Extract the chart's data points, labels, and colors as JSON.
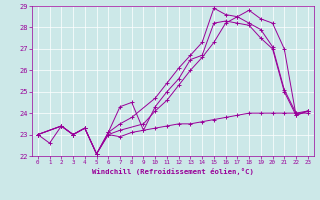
{
  "xlabel": "Windchill (Refroidissement éolien,°C)",
  "background_color": "#cce8e8",
  "line_color": "#990099",
  "grid_color": "#aacccc",
  "xlim": [
    -0.5,
    23.5
  ],
  "ylim": [
    22.0,
    29.0
  ],
  "xticks": [
    0,
    1,
    2,
    3,
    4,
    5,
    6,
    7,
    8,
    9,
    10,
    11,
    12,
    13,
    14,
    15,
    16,
    17,
    18,
    19,
    20,
    21,
    22,
    23
  ],
  "yticks": [
    22,
    23,
    24,
    25,
    26,
    27,
    28,
    29
  ],
  "series": [
    {
      "x": [
        0,
        1,
        2,
        3,
        4,
        5,
        6,
        7,
        8,
        9,
        10,
        11,
        12,
        13,
        14,
        15,
        16,
        17,
        18,
        19,
        20,
        21,
        22,
        23
      ],
      "y": [
        23.0,
        22.6,
        23.4,
        23.0,
        23.3,
        22.1,
        23.0,
        22.9,
        23.1,
        23.2,
        23.3,
        23.4,
        23.5,
        23.5,
        23.6,
        23.7,
        23.8,
        23.9,
        24.0,
        24.0,
        24.0,
        24.0,
        24.0,
        24.0
      ]
    },
    {
      "x": [
        0,
        2,
        3,
        4,
        5,
        6,
        7,
        8,
        9,
        10,
        11,
        12,
        13,
        14,
        15,
        16,
        17,
        18,
        19,
        20,
        21,
        22,
        23
      ],
      "y": [
        23.0,
        23.4,
        23.0,
        23.3,
        22.1,
        23.1,
        24.3,
        24.5,
        23.2,
        24.3,
        25.0,
        25.6,
        26.5,
        26.7,
        28.2,
        28.3,
        28.2,
        28.1,
        27.5,
        27.0,
        25.0,
        23.9,
        24.1
      ]
    },
    {
      "x": [
        0,
        2,
        3,
        4,
        5,
        6,
        7,
        9,
        10,
        11,
        12,
        13,
        14,
        15,
        16,
        17,
        18,
        19,
        20,
        21,
        22,
        23
      ],
      "y": [
        23.0,
        23.4,
        23.0,
        23.3,
        22.1,
        23.0,
        23.2,
        23.5,
        24.1,
        24.6,
        25.3,
        26.0,
        26.6,
        27.3,
        28.2,
        28.5,
        28.8,
        28.4,
        28.2,
        27.0,
        23.9,
        24.1
      ]
    },
    {
      "x": [
        0,
        2,
        3,
        4,
        5,
        6,
        7,
        8,
        10,
        11,
        12,
        13,
        14,
        15,
        16,
        17,
        18,
        19,
        20,
        21,
        22,
        23
      ],
      "y": [
        23.0,
        23.4,
        23.0,
        23.3,
        22.1,
        23.1,
        23.5,
        23.8,
        24.7,
        25.4,
        26.1,
        26.7,
        27.3,
        28.9,
        28.6,
        28.5,
        28.2,
        27.9,
        27.1,
        25.1,
        24.0,
        24.1
      ]
    }
  ]
}
